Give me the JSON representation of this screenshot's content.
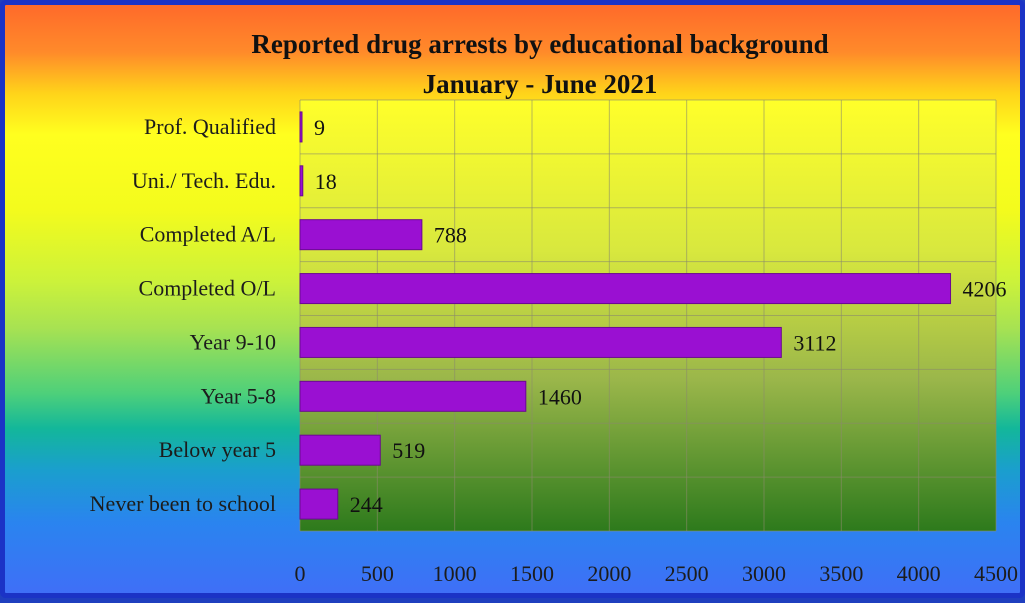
{
  "chart_data": {
    "type": "bar",
    "orientation": "horizontal",
    "title": "Reported drug arrests by educational background",
    "subtitle": "January - June 2021",
    "categories": [
      "Prof. Qualified",
      "Uni./ Tech. Edu.",
      "Completed A/L",
      "Completed O/L",
      "Year 9-10",
      "Year 5-8",
      "Below year 5",
      "Never been to school"
    ],
    "values": [
      9,
      18,
      788,
      4206,
      3112,
      1460,
      519,
      244
    ],
    "xlim": [
      0,
      4500
    ],
    "xticks": [
      0,
      500,
      1000,
      1500,
      2000,
      2500,
      3000,
      3500,
      4000,
      4500
    ],
    "grid": true,
    "legend": "none",
    "colors": {
      "bar": "#9a10d2",
      "bar_edge": "#6a0a90",
      "grid": "#8a8a6a",
      "plot_top": "#ffff2a",
      "plot_bottom": "#2d7a1c"
    }
  }
}
